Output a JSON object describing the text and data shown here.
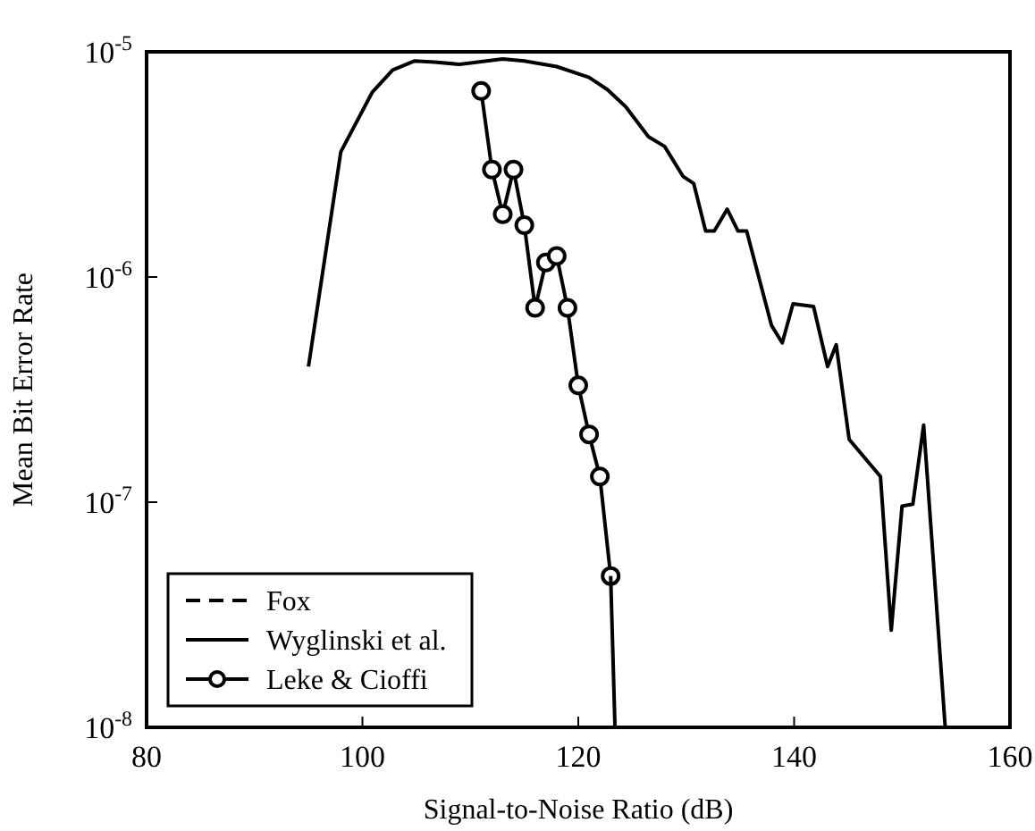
{
  "chart_data": {
    "type": "line",
    "xlabel": "Signal-to-Noise Ratio (dB)",
    "ylabel": "Mean Bit Error Rate",
    "log": "y",
    "xlim": [
      80,
      160
    ],
    "xticks": [
      80,
      100,
      120,
      140,
      160
    ],
    "ylim": [
      1e-08,
      1e-05
    ],
    "yticks": [
      {
        "value": 1e-08,
        "label": "10$^{-8}$"
      },
      {
        "value": 1e-07,
        "label": "10$^{-7}$"
      },
      {
        "value": 1e-06,
        "label": "10$^{-6}$"
      },
      {
        "value": 1e-05,
        "label": "10$^{-5}$"
      }
    ],
    "grid": false,
    "legend": "bottom left",
    "series": [
      {
        "name": "Fox",
        "color": "#000000",
        "line_style": "dashed",
        "marker": "none"
      },
      {
        "name": "Wyglinski et al.",
        "color": "#000000",
        "line_style": "solid",
        "marker": "none",
        "x": [
          95,
          98,
          100.9,
          102.8,
          104.8,
          106.7,
          109,
          113,
          115,
          118,
          121,
          122.7,
          124.4,
          126.5,
          128,
          129.7,
          130.7,
          131.8,
          132.6,
          133.8,
          134.8,
          135.6,
          137.9,
          138.9,
          139.9,
          141.8,
          143.1,
          143.9,
          145.1,
          148,
          149,
          150,
          151,
          152,
          154
        ],
        "values": [
          4e-07,
          3.6e-06,
          6.6e-06,
          8.3e-06,
          9.1e-06,
          9e-06,
          8.8e-06,
          9.3e-06,
          9.1e-06,
          8.6e-06,
          7.7e-06,
          6.8e-06,
          5.7e-06,
          4.2e-06,
          3.8e-06,
          2.8e-06,
          2.6e-06,
          1.6e-06,
          1.6e-06,
          2e-06,
          1.6e-06,
          1.6e-06,
          6.1e-07,
          5.1e-07,
          7.6e-07,
          7.4e-07,
          4e-07,
          5e-07,
          1.9e-07,
          1.3e-07,
          2.7e-08,
          9.6e-08,
          9.8e-08,
          2.2e-07,
          1e-08
        ]
      },
      {
        "name": "Leke & Cioffi",
        "color": "#000000",
        "line_style": "solid",
        "marker": "circle",
        "x": [
          111,
          112,
          113,
          114,
          115,
          116,
          117,
          118,
          119,
          120,
          121,
          122,
          123
        ],
        "values": [
          6.7e-06,
          3e-06,
          1.9e-06,
          3e-06,
          1.7e-06,
          7.3e-07,
          1.16e-06,
          1.24e-06,
          7.3e-07,
          3.3e-07,
          2e-07,
          1.3e-07,
          4.7e-08
        ]
      },
      {
        "color": "#000000",
        "line_style": "solid",
        "marker": "none",
        "x": [
          123,
          123.4
        ],
        "values": [
          4.7e-08,
          1e-08
        ]
      }
    ]
  }
}
